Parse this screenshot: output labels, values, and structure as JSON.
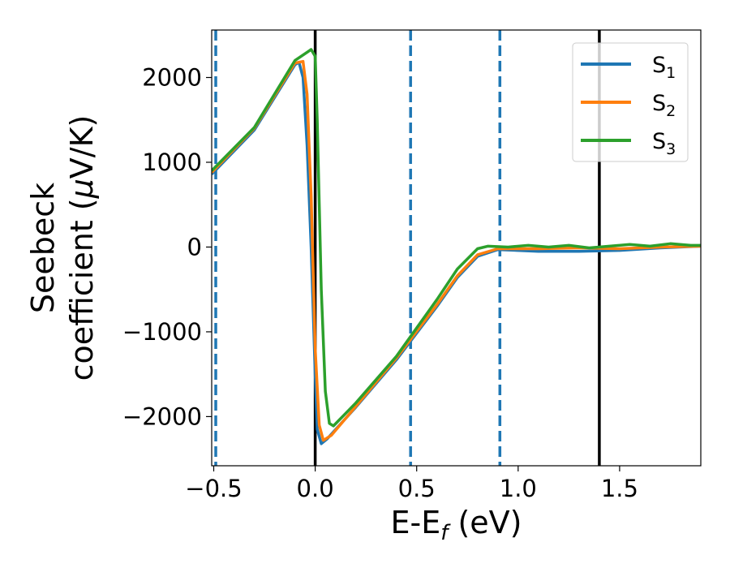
{
  "chart_data": {
    "type": "line",
    "title": "",
    "xlabel": {
      "main": "E-E",
      "sub": "f",
      "unit": " (eV)"
    },
    "ylabel": {
      "line1": "Seebeck",
      "line2": "coefficient  (",
      "mu": "μ",
      "line2_end": "V/K)"
    },
    "xlim": [
      -0.51,
      1.9
    ],
    "ylim": [
      -2580,
      2560
    ],
    "xticks": [
      -0.5,
      0.0,
      0.5,
      1.0,
      1.5
    ],
    "xtick_labels": [
      "−0.5",
      "0.0",
      "0.5",
      "1.0",
      "1.5"
    ],
    "yticks": [
      -2000,
      -1000,
      0,
      1000,
      2000
    ],
    "ytick_labels": [
      "−2000",
      "−1000",
      "0",
      "1000",
      "2000"
    ],
    "grid": false,
    "legend_position": "top-right",
    "vlines": [
      {
        "x": -0.49,
        "style": "dashed",
        "color": "#1f77b4"
      },
      {
        "x": 0.0,
        "style": "solid",
        "color": "#000000"
      },
      {
        "x": 0.47,
        "style": "dashed",
        "color": "#1f77b4"
      },
      {
        "x": 0.91,
        "style": "dashed",
        "color": "#1f77b4"
      },
      {
        "x": 1.4,
        "style": "solid",
        "color": "#000000"
      }
    ],
    "series": [
      {
        "name": "S",
        "sub": "1",
        "color": "#1f77b4",
        "points": [
          [
            -0.51,
            860
          ],
          [
            -0.3,
            1380
          ],
          [
            -0.1,
            2150
          ],
          [
            -0.08,
            2180
          ],
          [
            -0.06,
            2000
          ],
          [
            -0.04,
            1200
          ],
          [
            -0.02,
            0
          ],
          [
            0.0,
            -1500
          ],
          [
            0.01,
            -2150
          ],
          [
            0.03,
            -2320
          ],
          [
            0.06,
            -2260
          ],
          [
            0.2,
            -1890
          ],
          [
            0.4,
            -1330
          ],
          [
            0.6,
            -700
          ],
          [
            0.7,
            -360
          ],
          [
            0.8,
            -110
          ],
          [
            0.9,
            -30
          ],
          [
            1.1,
            -50
          ],
          [
            1.3,
            -50
          ],
          [
            1.5,
            -40
          ],
          [
            1.7,
            -10
          ],
          [
            1.9,
            10
          ]
        ]
      },
      {
        "name": "S",
        "sub": "2",
        "color": "#ff7f0e",
        "points": [
          [
            -0.51,
            880
          ],
          [
            -0.3,
            1400
          ],
          [
            -0.1,
            2170
          ],
          [
            -0.06,
            2190
          ],
          [
            -0.04,
            1800
          ],
          [
            -0.02,
            600
          ],
          [
            0.0,
            -1200
          ],
          [
            0.02,
            -2100
          ],
          [
            0.04,
            -2280
          ],
          [
            0.08,
            -2220
          ],
          [
            0.2,
            -1880
          ],
          [
            0.4,
            -1310
          ],
          [
            0.6,
            -680
          ],
          [
            0.7,
            -340
          ],
          [
            0.8,
            -90
          ],
          [
            0.9,
            -20
          ],
          [
            1.1,
            -20
          ],
          [
            1.3,
            -10
          ],
          [
            1.5,
            -20
          ],
          [
            1.7,
            0
          ],
          [
            1.9,
            10
          ]
        ]
      },
      {
        "name": "S",
        "sub": "3",
        "color": "#2ca02c",
        "points": [
          [
            -0.51,
            900
          ],
          [
            -0.3,
            1410
          ],
          [
            -0.1,
            2200
          ],
          [
            -0.02,
            2330
          ],
          [
            0.0,
            2250
          ],
          [
            0.01,
            1500
          ],
          [
            0.03,
            -500
          ],
          [
            0.05,
            -1700
          ],
          [
            0.07,
            -2080
          ],
          [
            0.09,
            -2110
          ],
          [
            0.2,
            -1840
          ],
          [
            0.4,
            -1290
          ],
          [
            0.6,
            -620
          ],
          [
            0.7,
            -260
          ],
          [
            0.8,
            -20
          ],
          [
            0.85,
            10
          ],
          [
            0.95,
            0
          ],
          [
            1.05,
            20
          ],
          [
            1.15,
            0
          ],
          [
            1.25,
            20
          ],
          [
            1.35,
            -10
          ],
          [
            1.45,
            10
          ],
          [
            1.55,
            30
          ],
          [
            1.65,
            10
          ],
          [
            1.75,
            40
          ],
          [
            1.85,
            20
          ],
          [
            1.9,
            20
          ]
        ]
      }
    ]
  }
}
